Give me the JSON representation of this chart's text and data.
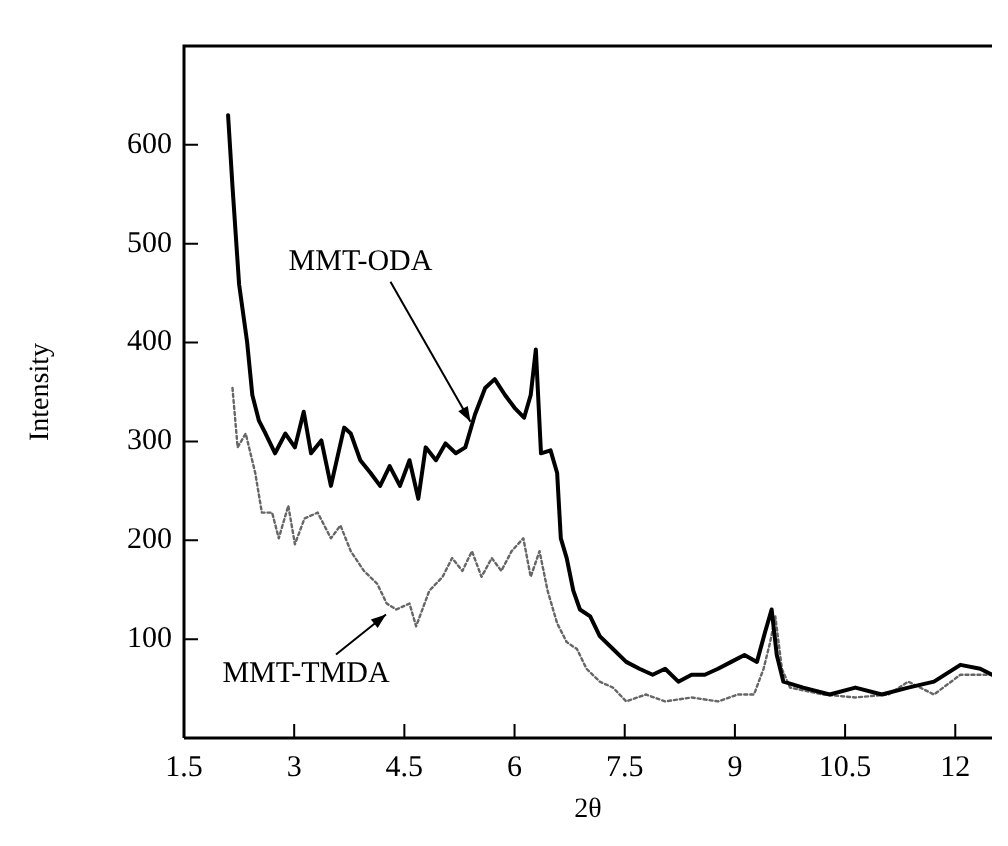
{
  "chart_data": {
    "type": "line",
    "xlabel": "2θ",
    "ylabel": "Intensity",
    "xlim": [
      1.5,
      12.5
    ],
    "xticks": [
      1.5,
      3,
      4.5,
      6,
      7.5,
      9,
      10.5,
      12
    ],
    "ylim": [
      0,
      700
    ],
    "yticks": [
      100,
      200,
      300,
      400,
      500,
      600
    ],
    "grid": false,
    "legend": false,
    "marker": "none",
    "annotations": [
      {
        "text": "MMT-ODA",
        "x": 5.4,
        "y": 320
      },
      {
        "text": "MMT-TMDA",
        "x": 4.25,
        "y": 125
      }
    ],
    "series": [
      {
        "color": "#000000",
        "line_style": "solid",
        "x": [
          2.1,
          2.16,
          2.25,
          2.36,
          2.43,
          2.52,
          2.61,
          2.74,
          2.88,
          3.01,
          3.13,
          3.23,
          3.37,
          3.5,
          3.68,
          3.77,
          3.9,
          4.04,
          4.17,
          4.3,
          4.44,
          4.57,
          4.69,
          4.79,
          4.93,
          5.06,
          5.2,
          5.33,
          5.46,
          5.6,
          5.73,
          5.87,
          6.0,
          6.13,
          6.22,
          6.29,
          6.36,
          6.49,
          6.58,
          6.63,
          6.71,
          6.8,
          6.89,
          7.03,
          7.16,
          7.34,
          7.52,
          7.7,
          7.88,
          8.05,
          8.23,
          8.41,
          8.59,
          8.77,
          8.95,
          9.13,
          9.3,
          9.41,
          9.5,
          9.57,
          9.66,
          9.93,
          10.29,
          10.64,
          11.0,
          11.36,
          11.71,
          12.07,
          12.34,
          12.5
        ],
        "values": [
          630,
          558,
          459,
          400,
          347,
          321,
          308,
          288,
          308,
          294,
          330,
          288,
          301,
          255,
          314,
          308,
          281,
          268,
          255,
          275,
          255,
          281,
          242,
          294,
          281,
          298,
          288,
          294,
          327,
          354,
          363,
          347,
          334,
          324,
          347,
          393,
          288,
          291,
          268,
          202,
          182,
          149,
          130,
          123,
          103,
          90,
          77,
          70,
          64,
          70,
          57,
          64,
          64,
          70,
          77,
          84,
          77,
          107,
          130,
          84,
          57,
          51,
          44,
          51,
          44,
          51,
          57,
          74,
          70,
          64
        ]
      },
      {
        "color": "#666666",
        "line_style": "dotted",
        "x": [
          2.16,
          2.23,
          2.34,
          2.47,
          2.56,
          2.7,
          2.79,
          2.92,
          3.01,
          3.14,
          3.32,
          3.5,
          3.63,
          3.77,
          3.95,
          4.13,
          4.26,
          4.39,
          4.57,
          4.66,
          4.84,
          5.02,
          5.15,
          5.29,
          5.42,
          5.55,
          5.69,
          5.82,
          5.96,
          6.12,
          6.22,
          6.34,
          6.45,
          6.58,
          6.71,
          6.85,
          6.98,
          7.16,
          7.34,
          7.52,
          7.79,
          8.05,
          8.41,
          8.77,
          9.04,
          9.26,
          9.39,
          9.48,
          9.55,
          9.64,
          9.75,
          10.2,
          10.64,
          11.09,
          11.36,
          11.71,
          12.07,
          12.5
        ],
        "values": [
          354,
          294,
          308,
          268,
          228,
          228,
          202,
          235,
          196,
          222,
          228,
          202,
          215,
          189,
          169,
          156,
          136,
          130,
          136,
          113,
          149,
          163,
          182,
          169,
          189,
          163,
          182,
          169,
          189,
          202,
          163,
          189,
          149,
          116,
          97,
          90,
          70,
          57,
          51,
          37,
          44,
          37,
          41,
          37,
          44,
          44,
          70,
          97,
          123,
          70,
          51,
          44,
          41,
          44,
          57,
          44,
          64,
          64
        ]
      }
    ]
  }
}
